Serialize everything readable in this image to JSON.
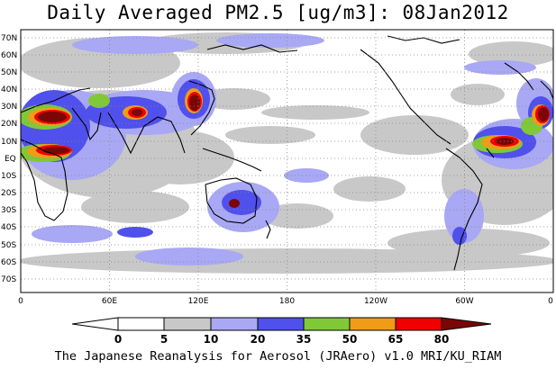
{
  "figure": {
    "title": "Daily Averaged PM2.5 [ug/m3]: 08Jan2012",
    "footer": "The Japanese Reanalysis for Aerosol (JRAero) v1.0 MRI/KU_RIAM",
    "lat_labels": [
      "70N",
      "60N",
      "50N",
      "40N",
      "30N",
      "20N",
      "10N",
      "EQ",
      "10S",
      "20S",
      "30S",
      "40S",
      "50S",
      "60S",
      "70S"
    ],
    "lon_labels": [
      "0",
      "60E",
      "120E",
      "180",
      "120W",
      "60W",
      "0"
    ],
    "colorbar": {
      "levels": [
        "0",
        "5",
        "10",
        "20",
        "35",
        "50",
        "65",
        "80"
      ],
      "colors": [
        "#ffffff",
        "#c8c8c8",
        "#a8a8f4",
        "#5050ec",
        "#80c838",
        "#f09c18",
        "#f00000",
        "#7a0606"
      ]
    }
  }
}
